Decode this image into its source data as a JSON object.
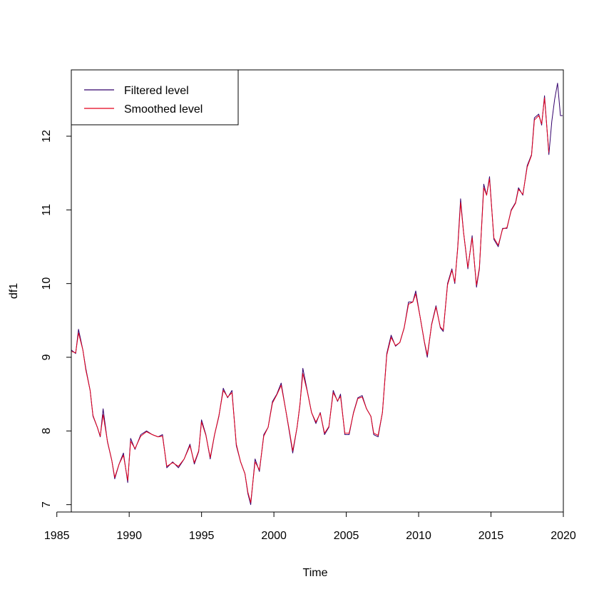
{
  "chart_data": {
    "type": "line",
    "title": "",
    "xlabel": "Time",
    "ylabel": "df1",
    "xlim": [
      1986,
      2020
    ],
    "ylim": [
      6.9,
      12.9
    ],
    "x_ticks": [
      1985,
      1990,
      1995,
      2000,
      2005,
      2010,
      2015,
      2020
    ],
    "y_ticks": [
      7,
      8,
      9,
      10,
      11,
      12
    ],
    "grid": false,
    "legend_position": "top-left",
    "series": [
      {
        "name": "Filtered level",
        "color": "#33006b",
        "points": [
          [
            1986.0,
            9.1
          ],
          [
            1986.3,
            9.05
          ],
          [
            1986.5,
            9.38
          ],
          [
            1986.8,
            9.1
          ],
          [
            1987.0,
            8.85
          ],
          [
            1987.3,
            8.55
          ],
          [
            1987.5,
            8.2
          ],
          [
            1987.8,
            8.05
          ],
          [
            1988.0,
            7.92
          ],
          [
            1988.2,
            8.3
          ],
          [
            1988.5,
            7.85
          ],
          [
            1988.8,
            7.6
          ],
          [
            1989.0,
            7.35
          ],
          [
            1989.3,
            7.55
          ],
          [
            1989.6,
            7.7
          ],
          [
            1989.9,
            7.3
          ],
          [
            1990.1,
            7.9
          ],
          [
            1990.4,
            7.75
          ],
          [
            1990.8,
            7.95
          ],
          [
            1991.2,
            8.0
          ],
          [
            1991.6,
            7.95
          ],
          [
            1992.0,
            7.92
          ],
          [
            1992.3,
            7.95
          ],
          [
            1992.6,
            7.5
          ],
          [
            1993.0,
            7.58
          ],
          [
            1993.4,
            7.5
          ],
          [
            1993.8,
            7.62
          ],
          [
            1994.2,
            7.82
          ],
          [
            1994.5,
            7.55
          ],
          [
            1994.8,
            7.72
          ],
          [
            1995.0,
            8.15
          ],
          [
            1995.3,
            7.95
          ],
          [
            1995.6,
            7.62
          ],
          [
            1995.9,
            7.95
          ],
          [
            1996.2,
            8.2
          ],
          [
            1996.5,
            8.58
          ],
          [
            1996.8,
            8.45
          ],
          [
            1997.1,
            8.55
          ],
          [
            1997.4,
            7.8
          ],
          [
            1997.7,
            7.58
          ],
          [
            1998.0,
            7.42
          ],
          [
            1998.2,
            7.15
          ],
          [
            1998.4,
            7.0
          ],
          [
            1998.7,
            7.62
          ],
          [
            1999.0,
            7.45
          ],
          [
            1999.3,
            7.95
          ],
          [
            1999.6,
            8.05
          ],
          [
            1999.9,
            8.4
          ],
          [
            2000.2,
            8.5
          ],
          [
            2000.5,
            8.65
          ],
          [
            2000.8,
            8.3
          ],
          [
            2001.1,
            7.95
          ],
          [
            2001.3,
            7.7
          ],
          [
            2001.6,
            8.05
          ],
          [
            2001.8,
            8.35
          ],
          [
            2002.0,
            8.85
          ],
          [
            2002.3,
            8.55
          ],
          [
            2002.6,
            8.25
          ],
          [
            2002.9,
            8.1
          ],
          [
            2003.2,
            8.25
          ],
          [
            2003.5,
            7.95
          ],
          [
            2003.8,
            8.05
          ],
          [
            2004.1,
            8.55
          ],
          [
            2004.4,
            8.4
          ],
          [
            2004.6,
            8.5
          ],
          [
            2004.9,
            7.95
          ],
          [
            2005.2,
            7.95
          ],
          [
            2005.5,
            8.25
          ],
          [
            2005.8,
            8.45
          ],
          [
            2006.1,
            8.48
          ],
          [
            2006.4,
            8.3
          ],
          [
            2006.7,
            8.2
          ],
          [
            2006.9,
            7.95
          ],
          [
            2007.2,
            7.92
          ],
          [
            2007.5,
            8.25
          ],
          [
            2007.8,
            9.05
          ],
          [
            2008.1,
            9.3
          ],
          [
            2008.4,
            9.15
          ],
          [
            2008.7,
            9.2
          ],
          [
            2009.0,
            9.4
          ],
          [
            2009.3,
            9.75
          ],
          [
            2009.6,
            9.75
          ],
          [
            2009.8,
            9.9
          ],
          [
            2010.1,
            9.55
          ],
          [
            2010.4,
            9.2
          ],
          [
            2010.6,
            9.0
          ],
          [
            2010.9,
            9.45
          ],
          [
            2011.2,
            9.7
          ],
          [
            2011.5,
            9.4
          ],
          [
            2011.7,
            9.35
          ],
          [
            2012.0,
            10.0
          ],
          [
            2012.3,
            10.2
          ],
          [
            2012.5,
            10.0
          ],
          [
            2012.7,
            10.5
          ],
          [
            2012.9,
            11.15
          ],
          [
            2013.1,
            10.7
          ],
          [
            2013.4,
            10.2
          ],
          [
            2013.7,
            10.65
          ],
          [
            2014.0,
            9.95
          ],
          [
            2014.2,
            10.2
          ],
          [
            2014.5,
            11.35
          ],
          [
            2014.7,
            11.2
          ],
          [
            2014.9,
            11.45
          ],
          [
            2015.2,
            10.6
          ],
          [
            2015.5,
            10.5
          ],
          [
            2015.8,
            10.75
          ],
          [
            2016.1,
            10.75
          ],
          [
            2016.4,
            11.0
          ],
          [
            2016.7,
            11.1
          ],
          [
            2016.9,
            11.3
          ],
          [
            2017.2,
            11.2
          ],
          [
            2017.5,
            11.6
          ],
          [
            2017.8,
            11.75
          ],
          [
            2018.0,
            12.25
          ],
          [
            2018.3,
            12.3
          ],
          [
            2018.5,
            12.15
          ],
          [
            2018.7,
            12.55
          ],
          [
            2019.0,
            11.75
          ],
          [
            2019.2,
            12.2
          ],
          [
            2019.4,
            12.5
          ],
          [
            2019.6,
            12.72
          ],
          [
            2019.8,
            12.28
          ],
          [
            2019.95,
            12.28
          ]
        ]
      },
      {
        "name": "Smoothed level",
        "color": "#e3001b",
        "points": [
          [
            1986.0,
            9.08
          ],
          [
            1986.3,
            9.06
          ],
          [
            1986.5,
            9.33
          ],
          [
            1986.8,
            9.1
          ],
          [
            1987.0,
            8.83
          ],
          [
            1987.3,
            8.55
          ],
          [
            1987.5,
            8.21
          ],
          [
            1987.8,
            8.05
          ],
          [
            1988.0,
            7.93
          ],
          [
            1988.2,
            8.22
          ],
          [
            1988.5,
            7.86
          ],
          [
            1988.8,
            7.6
          ],
          [
            1989.0,
            7.37
          ],
          [
            1989.3,
            7.55
          ],
          [
            1989.6,
            7.67
          ],
          [
            1989.9,
            7.33
          ],
          [
            1990.1,
            7.86
          ],
          [
            1990.4,
            7.76
          ],
          [
            1990.8,
            7.93
          ],
          [
            1991.2,
            7.99
          ],
          [
            1991.6,
            7.95
          ],
          [
            1992.0,
            7.92
          ],
          [
            1992.3,
            7.93
          ],
          [
            1992.6,
            7.52
          ],
          [
            1993.0,
            7.57
          ],
          [
            1993.4,
            7.52
          ],
          [
            1993.8,
            7.62
          ],
          [
            1994.2,
            7.8
          ],
          [
            1994.5,
            7.57
          ],
          [
            1994.8,
            7.73
          ],
          [
            1995.0,
            8.12
          ],
          [
            1995.3,
            7.94
          ],
          [
            1995.6,
            7.64
          ],
          [
            1995.9,
            7.95
          ],
          [
            1996.2,
            8.21
          ],
          [
            1996.5,
            8.55
          ],
          [
            1996.8,
            8.46
          ],
          [
            1997.1,
            8.52
          ],
          [
            1997.4,
            7.82
          ],
          [
            1997.7,
            7.58
          ],
          [
            1998.0,
            7.42
          ],
          [
            1998.2,
            7.17
          ],
          [
            1998.4,
            7.03
          ],
          [
            1998.7,
            7.58
          ],
          [
            1999.0,
            7.47
          ],
          [
            1999.3,
            7.93
          ],
          [
            1999.6,
            8.05
          ],
          [
            1999.9,
            8.38
          ],
          [
            2000.2,
            8.49
          ],
          [
            2000.5,
            8.62
          ],
          [
            2000.8,
            8.3
          ],
          [
            2001.1,
            7.97
          ],
          [
            2001.3,
            7.73
          ],
          [
            2001.6,
            8.05
          ],
          [
            2001.8,
            8.36
          ],
          [
            2002.0,
            8.78
          ],
          [
            2002.3,
            8.54
          ],
          [
            2002.6,
            8.25
          ],
          [
            2002.9,
            8.12
          ],
          [
            2003.2,
            8.24
          ],
          [
            2003.5,
            7.97
          ],
          [
            2003.8,
            8.06
          ],
          [
            2004.1,
            8.52
          ],
          [
            2004.4,
            8.41
          ],
          [
            2004.6,
            8.47
          ],
          [
            2004.9,
            7.97
          ],
          [
            2005.2,
            7.97
          ],
          [
            2005.5,
            8.24
          ],
          [
            2005.8,
            8.44
          ],
          [
            2006.1,
            8.46
          ],
          [
            2006.4,
            8.3
          ],
          [
            2006.7,
            8.2
          ],
          [
            2006.9,
            7.97
          ],
          [
            2007.2,
            7.94
          ],
          [
            2007.5,
            8.25
          ],
          [
            2007.8,
            9.03
          ],
          [
            2008.1,
            9.27
          ],
          [
            2008.4,
            9.16
          ],
          [
            2008.7,
            9.2
          ],
          [
            2009.0,
            9.4
          ],
          [
            2009.3,
            9.72
          ],
          [
            2009.6,
            9.75
          ],
          [
            2009.8,
            9.86
          ],
          [
            2010.1,
            9.55
          ],
          [
            2010.4,
            9.21
          ],
          [
            2010.6,
            9.03
          ],
          [
            2010.9,
            9.44
          ],
          [
            2011.2,
            9.68
          ],
          [
            2011.5,
            9.41
          ],
          [
            2011.7,
            9.37
          ],
          [
            2012.0,
            9.98
          ],
          [
            2012.3,
            10.18
          ],
          [
            2012.5,
            10.02
          ],
          [
            2012.7,
            10.48
          ],
          [
            2012.9,
            11.1
          ],
          [
            2013.1,
            10.7
          ],
          [
            2013.4,
            10.22
          ],
          [
            2013.7,
            10.62
          ],
          [
            2014.0,
            9.98
          ],
          [
            2014.2,
            10.22
          ],
          [
            2014.5,
            11.3
          ],
          [
            2014.7,
            11.2
          ],
          [
            2014.9,
            11.42
          ],
          [
            2015.2,
            10.62
          ],
          [
            2015.5,
            10.52
          ],
          [
            2015.8,
            10.74
          ],
          [
            2016.1,
            10.76
          ],
          [
            2016.4,
            10.99
          ],
          [
            2016.7,
            11.09
          ],
          [
            2016.9,
            11.28
          ],
          [
            2017.2,
            11.21
          ],
          [
            2017.5,
            11.58
          ],
          [
            2017.8,
            11.74
          ],
          [
            2018.0,
            12.22
          ],
          [
            2018.3,
            12.28
          ],
          [
            2018.5,
            12.17
          ],
          [
            2018.7,
            12.52
          ],
          [
            2019.0,
            11.78
          ]
        ]
      }
    ]
  }
}
